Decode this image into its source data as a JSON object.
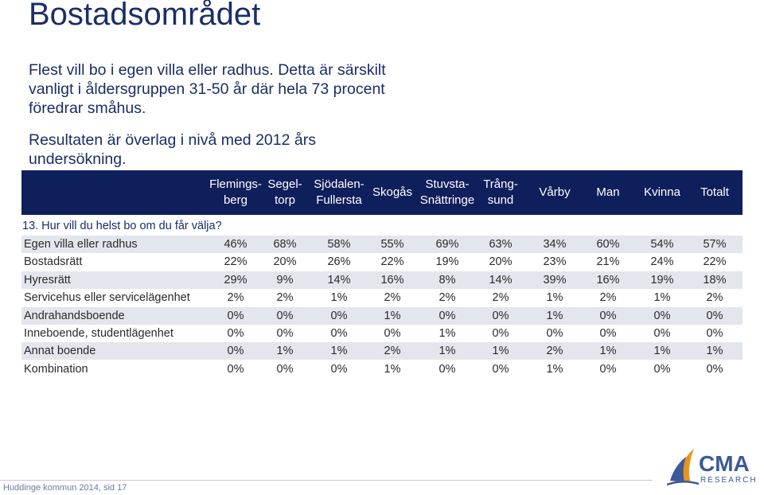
{
  "title": "Bostadsområdet",
  "intro": [
    "Flest vill bo i egen villa eller radhus. Detta är särskilt vanligt i åldersgruppen 31-50 år där hela 73 procent föredrar småhus.",
    "Resultaten är överlag i nivå med 2012 års undersökning."
  ],
  "table": {
    "columns": [
      "Flemings-\nberg",
      "Segel-\ntorp",
      "Sjödalen-\nFullersta",
      "Skogås",
      "Stuvsta-\nSnättringe",
      "Trång-\nsund",
      "Vårby",
      "Man",
      "Kvinna",
      "Totalt"
    ],
    "question": "13. Hur vill du helst bo om du får välja?",
    "rows": [
      {
        "label": "Egen villa eller radhus",
        "values": [
          "46%",
          "68%",
          "58%",
          "55%",
          "69%",
          "63%",
          "34%",
          "60%",
          "54%",
          "57%"
        ]
      },
      {
        "label": "Bostadsrätt",
        "values": [
          "22%",
          "20%",
          "26%",
          "22%",
          "19%",
          "20%",
          "23%",
          "21%",
          "24%",
          "22%"
        ]
      },
      {
        "label": "Hyresrätt",
        "values": [
          "29%",
          "9%",
          "14%",
          "16%",
          "8%",
          "14%",
          "39%",
          "16%",
          "19%",
          "18%"
        ]
      },
      {
        "label": "Servicehus eller servicelägenhet",
        "values": [
          "2%",
          "2%",
          "1%",
          "2%",
          "2%",
          "2%",
          "1%",
          "2%",
          "1%",
          "2%"
        ]
      },
      {
        "label": "Andrahandsboende",
        "values": [
          "0%",
          "0%",
          "0%",
          "1%",
          "0%",
          "0%",
          "1%",
          "0%",
          "0%",
          "0%"
        ]
      },
      {
        "label": "Inneboende, studentlägenhet",
        "values": [
          "0%",
          "0%",
          "0%",
          "0%",
          "1%",
          "0%",
          "0%",
          "0%",
          "0%",
          "0%"
        ]
      },
      {
        "label": "Annat boende",
        "values": [
          "0%",
          "1%",
          "1%",
          "2%",
          "1%",
          "1%",
          "2%",
          "1%",
          "1%",
          "1%"
        ]
      },
      {
        "label": "Kombination",
        "values": [
          "0%",
          "0%",
          "0%",
          "1%",
          "0%",
          "0%",
          "1%",
          "0%",
          "0%",
          "0%"
        ]
      }
    ]
  },
  "footer": "Huddinge kommun 2014, sid 17",
  "logo": {
    "name": "CMA",
    "sub": "RESEARCH"
  },
  "colors": {
    "navy": "#0f1f5c",
    "band": "#e4e6ed",
    "logo_blue": "#3b5a98",
    "logo_orange": "#e8951e"
  }
}
